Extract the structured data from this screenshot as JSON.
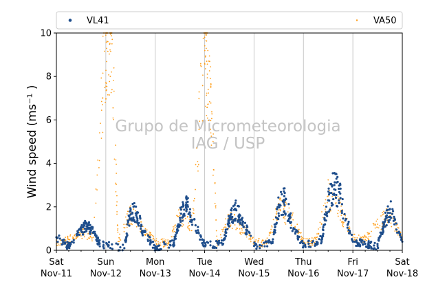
{
  "chart_data": {
    "type": "scatter",
    "title": "",
    "xlabel": "",
    "ylabel": "Wind speed (ms⁻¹ )",
    "ylim": [
      0,
      10
    ],
    "xlim": [
      "2017-11-11",
      "2017-11-18"
    ],
    "yticks": [
      0,
      2,
      4,
      6,
      8,
      10
    ],
    "xticks": [
      {
        "date": "2017-11-11",
        "label_top": "Sat",
        "label_bottom": "Nov-11"
      },
      {
        "date": "2017-11-12",
        "label_top": "Sun",
        "label_bottom": "Nov-12"
      },
      {
        "date": "2017-11-13",
        "label_top": "Mon",
        "label_bottom": "Nov-13"
      },
      {
        "date": "2017-11-14",
        "label_top": "Tue",
        "label_bottom": "Nov-14"
      },
      {
        "date": "2017-11-15",
        "label_top": "Wed",
        "label_bottom": "Nov-15"
      },
      {
        "date": "2017-11-16",
        "label_top": "Thu",
        "label_bottom": "Nov-16"
      },
      {
        "date": "2017-11-17",
        "label_top": "Fri",
        "label_bottom": "Nov-17"
      },
      {
        "date": "2017-11-18",
        "label_top": "Sat",
        "label_bottom": "Nov-18"
      }
    ],
    "grid": "vertical-at-midnight",
    "legend_position": "top",
    "watermark": [
      "Grupo de Micrometeorologia",
      "IAG / USP"
    ],
    "series": [
      {
        "name": "VL41",
        "color": "#1f4e8c",
        "marker": "dot",
        "x": [
          "2017-11-11T00:00",
          "2017-11-11T06:00",
          "2017-11-11T12:00",
          "2017-11-11T15:00",
          "2017-11-11T18:00",
          "2017-11-11T21:00",
          "2017-11-12T09:00",
          "2017-11-12T12:00",
          "2017-11-12T15:00",
          "2017-11-12T18:00",
          "2017-11-13T00:00",
          "2017-11-13T09:00",
          "2017-11-13T12:00",
          "2017-11-13T15:00",
          "2017-11-13T18:00",
          "2017-11-14T00:00",
          "2017-11-14T09:00",
          "2017-11-14T12:00",
          "2017-11-14T15:00",
          "2017-11-14T18:00",
          "2017-11-15T00:00",
          "2017-11-15T09:00",
          "2017-11-15T12:00",
          "2017-11-15T15:00",
          "2017-11-15T18:00",
          "2017-11-16T00:00",
          "2017-11-16T09:00",
          "2017-11-16T12:00",
          "2017-11-16T15:00",
          "2017-11-16T18:00",
          "2017-11-17T00:00",
          "2017-11-17T06:00",
          "2017-11-17T12:00",
          "2017-11-17T15:00",
          "2017-11-17T18:00",
          "2017-11-18T00:00"
        ],
        "y": [
          0.6,
          0.2,
          0.9,
          1.2,
          0.8,
          0.3,
          0.1,
          1.8,
          1.7,
          0.9,
          0.1,
          0.3,
          1.5,
          2.1,
          1.4,
          0.2,
          0.3,
          1.4,
          1.9,
          1.4,
          0.2,
          0.4,
          2.1,
          2.3,
          1.3,
          0.2,
          0.5,
          2.3,
          3.0,
          2.4,
          0.4,
          0.3,
          0.2,
          1.2,
          1.9,
          0.4
        ]
      },
      {
        "name": "VA50",
        "color": "#ff9f1c",
        "marker": "small-dot",
        "x": [
          "2017-11-11T00:00",
          "2017-11-11T06:00",
          "2017-11-11T12:00",
          "2017-11-11T18:00",
          "2017-11-12T00:00",
          "2017-11-12T01:00",
          "2017-11-12T03:00",
          "2017-11-12T06:00",
          "2017-11-12T12:00",
          "2017-11-12T18:00",
          "2017-11-13T00:00",
          "2017-11-13T06:00",
          "2017-11-13T12:00",
          "2017-11-13T18:00",
          "2017-11-14T00:00",
          "2017-11-14T01:00",
          "2017-11-14T03:00",
          "2017-11-14T06:00",
          "2017-11-14T12:00",
          "2017-11-14T18:00",
          "2017-11-15T00:00",
          "2017-11-15T06:00",
          "2017-11-15T12:00",
          "2017-11-15T18:00",
          "2017-11-16T00:00",
          "2017-11-16T06:00",
          "2017-11-16T12:00",
          "2017-11-16T18:00",
          "2017-11-17T00:00",
          "2017-11-17T06:00",
          "2017-11-17T12:00",
          "2017-11-17T18:00",
          "2017-11-18T00:00"
        ],
        "y": [
          0.3,
          0.5,
          0.8,
          0.6,
          9.9,
          9.6,
          9.5,
          0.4,
          1.7,
          1.1,
          0.4,
          0.3,
          1.6,
          1.2,
          9.8,
          8.7,
          7.5,
          0.3,
          1.5,
          1.0,
          0.4,
          0.3,
          2.0,
          1.5,
          0.4,
          0.4,
          2.5,
          1.8,
          0.6,
          0.5,
          1.2,
          1.6,
          0.5
        ]
      }
    ]
  }
}
